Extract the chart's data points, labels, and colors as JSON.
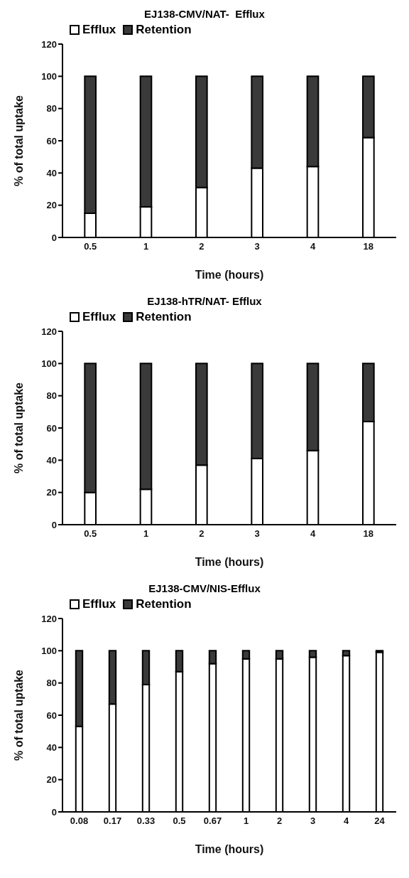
{
  "chart_data": [
    {
      "type": "bar",
      "title": "EJ138-CMV/NAT-  Efflux",
      "xlabel": "Time (hours)",
      "ylabel": "% of total uptake",
      "categories": [
        "0.5",
        "1",
        "2",
        "3",
        "4",
        "18"
      ],
      "stacked": true,
      "legend": "top left",
      "grid": false,
      "ylim": [
        0,
        120
      ],
      "yticks": [
        0,
        20,
        40,
        60,
        80,
        100,
        120
      ],
      "series": [
        {
          "name": "Efflux",
          "color": "#ffffff",
          "values": [
            15,
            19,
            31,
            43,
            44,
            62
          ]
        },
        {
          "name": "Retention",
          "color": "#3a3a3a",
          "values": [
            85,
            81,
            69,
            57,
            56,
            38
          ]
        }
      ]
    },
    {
      "type": "bar",
      "title": "EJ138-hTR/NAT- Efflux",
      "xlabel": "Time (hours)",
      "ylabel": "% of total uptake",
      "categories": [
        "0.5",
        "1",
        "2",
        "3",
        "4",
        "18"
      ],
      "stacked": true,
      "legend": "top left",
      "grid": false,
      "ylim": [
        0,
        120
      ],
      "yticks": [
        0,
        20,
        40,
        60,
        80,
        100,
        120
      ],
      "series": [
        {
          "name": "Efflux",
          "color": "#ffffff",
          "values": [
            20,
            22,
            37,
            41,
            46,
            64
          ]
        },
        {
          "name": "Retention",
          "color": "#3a3a3a",
          "values": [
            80,
            78,
            63,
            59,
            54,
            36
          ]
        }
      ]
    },
    {
      "type": "bar",
      "title": "EJ138-CMV/NIS-Efflux",
      "xlabel": "Time (hours)",
      "ylabel": "% of total uptake",
      "categories": [
        "0.08",
        "0.17",
        "0.33",
        "0.5",
        "0.67",
        "1",
        "2",
        "3",
        "4",
        "24"
      ],
      "stacked": true,
      "legend": "top left",
      "grid": false,
      "ylim": [
        0,
        120
      ],
      "yticks": [
        0,
        20,
        40,
        60,
        80,
        100,
        120
      ],
      "series": [
        {
          "name": "Efflux",
          "color": "#ffffff",
          "values": [
            53,
            67,
            79,
            87,
            92,
            95,
            95,
            96,
            97,
            99
          ]
        },
        {
          "name": "Retention",
          "color": "#3a3a3a",
          "values": [
            47,
            33,
            21,
            13,
            8,
            5,
            5,
            4,
            3,
            1
          ]
        }
      ]
    }
  ]
}
